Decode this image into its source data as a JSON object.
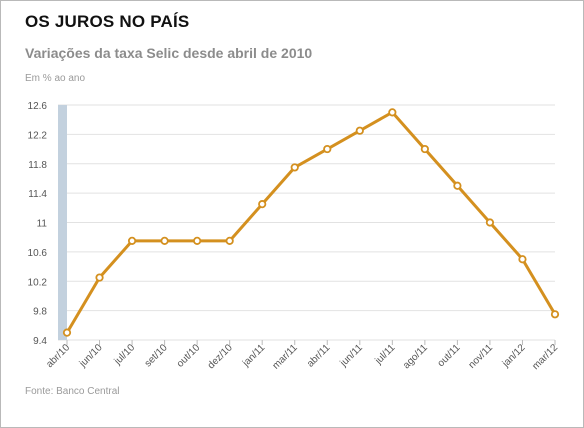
{
  "header": {
    "title": "OS JUROS NO PAÍS",
    "subtitle": "Variações da taxa Selic desde abril de 2010"
  },
  "chart_data": {
    "type": "line",
    "title": "OS JUROS NO PAÍS",
    "subtitle": "Variações da taxa Selic desde abril de 2010",
    "ylabel": "Em % ao ano",
    "xlabel": "",
    "source": "Fonte: Banco Central",
    "ylim": [
      9.4,
      12.6
    ],
    "y_ticks": [
      "12.6",
      "12.2",
      "11.8",
      "11.4",
      "11",
      "10.6",
      "10.2",
      "9.8",
      "9.4"
    ],
    "y_tick_values": [
      12.6,
      12.2,
      11.8,
      11.4,
      11.0,
      10.6,
      10.2,
      9.8,
      9.4
    ],
    "categories": [
      "abr/10",
      "jun/10",
      "jul/10",
      "set/10",
      "out/10",
      "dez/10",
      "jan/11",
      "mar/11",
      "abr/11",
      "jun/11",
      "jul/11",
      "ago/11",
      "out/11",
      "nov/11",
      "jan/12",
      "mar/12"
    ],
    "series": [
      {
        "values": [
          9.5,
          10.25,
          10.75,
          10.75,
          10.75,
          10.75,
          11.25,
          11.75,
          12.0,
          12.25,
          12.5,
          12.0,
          11.5,
          11.0,
          10.5,
          9.75
        ]
      }
    ],
    "grid": true,
    "colors": {
      "line": "#d4901f",
      "point_fill": "#ffffff",
      "grid": "#e2e2e2",
      "axis_band": "#c3d1de"
    }
  }
}
